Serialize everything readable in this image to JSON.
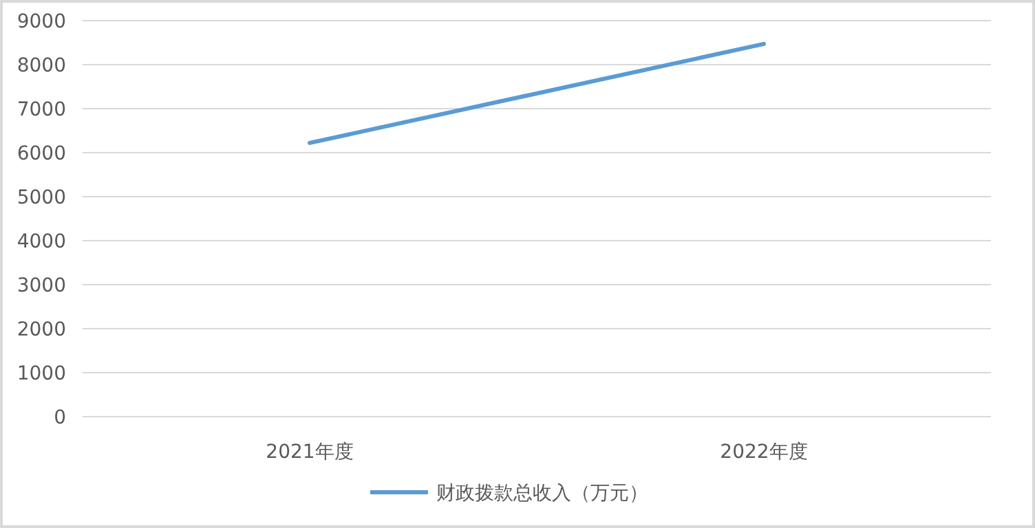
{
  "chart_data": {
    "type": "line",
    "categories": [
      "2021年度",
      "2022年度"
    ],
    "series": [
      {
        "name": "财政拨款总收入（万元）",
        "color": "#5b9bd5",
        "values": [
          6220,
          8470
        ]
      }
    ],
    "ylim": [
      0,
      9000
    ],
    "yticks": [
      0,
      1000,
      2000,
      3000,
      4000,
      5000,
      6000,
      7000,
      8000,
      9000
    ],
    "grid": "y",
    "legend": "bottom",
    "marker": "none",
    "line_style": "solid"
  }
}
